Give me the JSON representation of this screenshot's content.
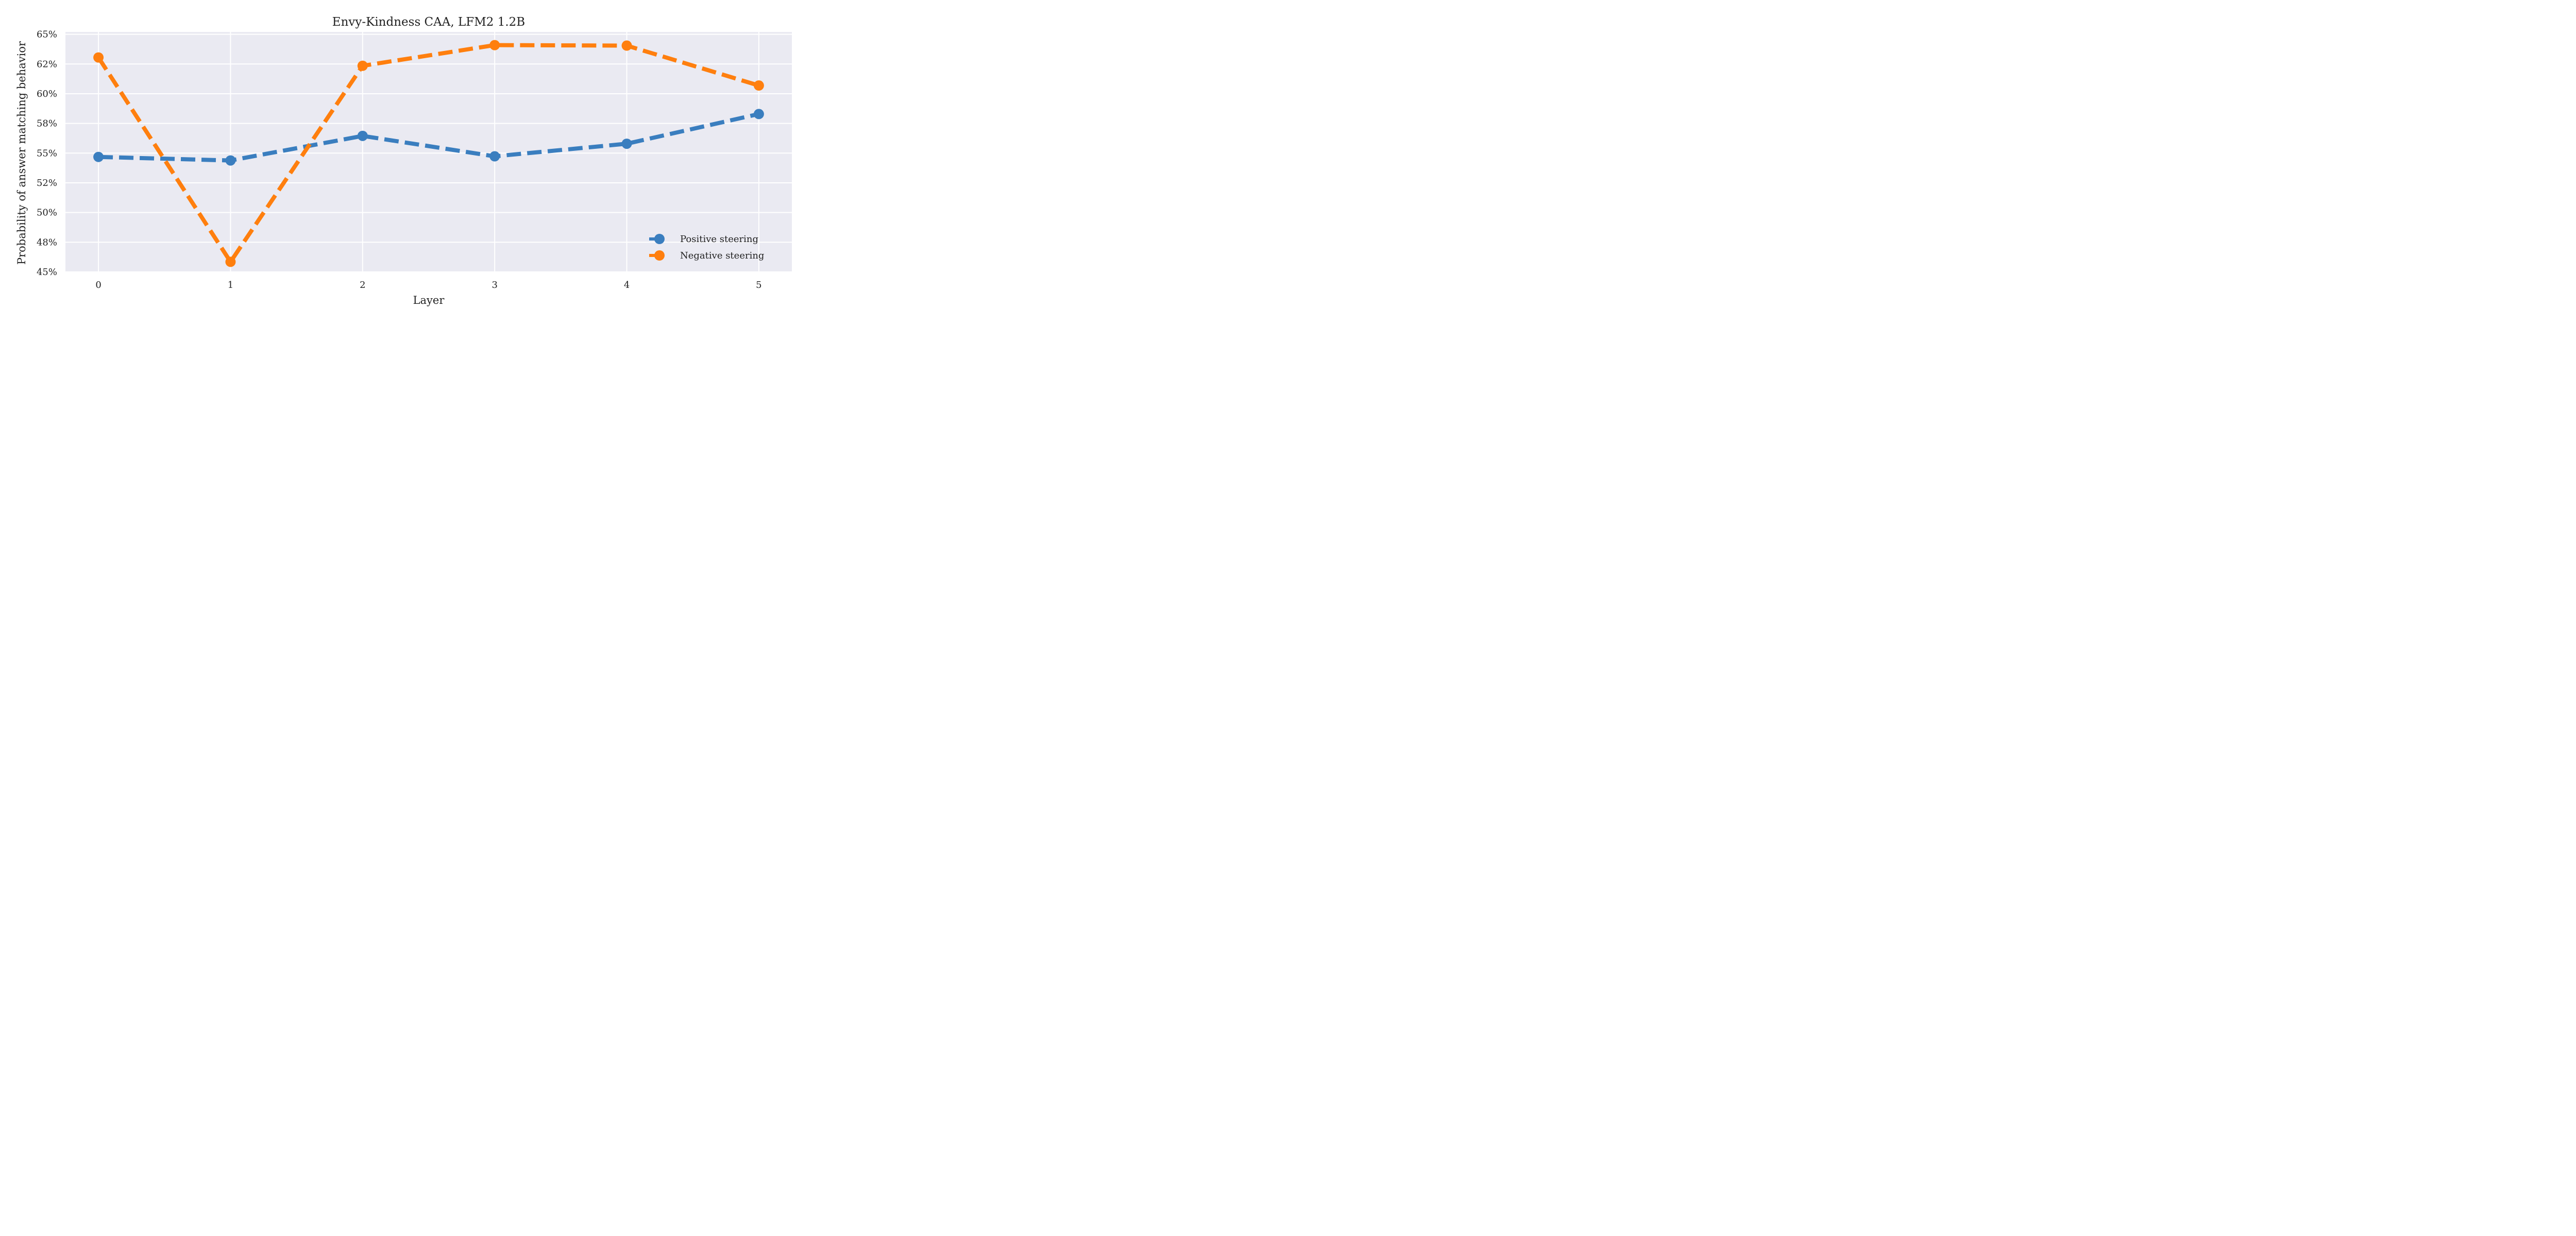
{
  "chart_data": {
    "type": "line",
    "title": "Envy-Kindness CAA, LFM2 1.2B",
    "xlabel": "Layer",
    "ylabel": "Probability of answer matching behavior",
    "x": [
      0,
      1,
      2,
      3,
      4,
      5
    ],
    "x_tick_labels": [
      "0",
      "1",
      "2",
      "3",
      "4",
      "5"
    ],
    "xlim": [
      -0.25,
      5.25
    ],
    "ylim": [
      0.45,
      0.652
    ],
    "y_ticks": [
      0.45,
      0.475,
      0.5,
      0.525,
      0.55,
      0.575,
      0.6,
      0.625,
      0.65
    ],
    "y_tick_labels": [
      "45%",
      "48%",
      "50%",
      "52%",
      "55%",
      "58%",
      "60%",
      "62%",
      "65%"
    ],
    "grid": true,
    "legend_position": "bottom-right",
    "series": [
      {
        "name": "Positive steering",
        "color": "#3a7ebf",
        "values": [
          0.5468,
          0.5438,
          0.5645,
          0.5473,
          0.5579,
          0.5829
        ]
      },
      {
        "name": "Negative steering",
        "color": "#ff7f0e",
        "values": [
          0.6305,
          0.4585,
          0.6235,
          0.6409,
          0.6405,
          0.6069
        ]
      }
    ]
  }
}
